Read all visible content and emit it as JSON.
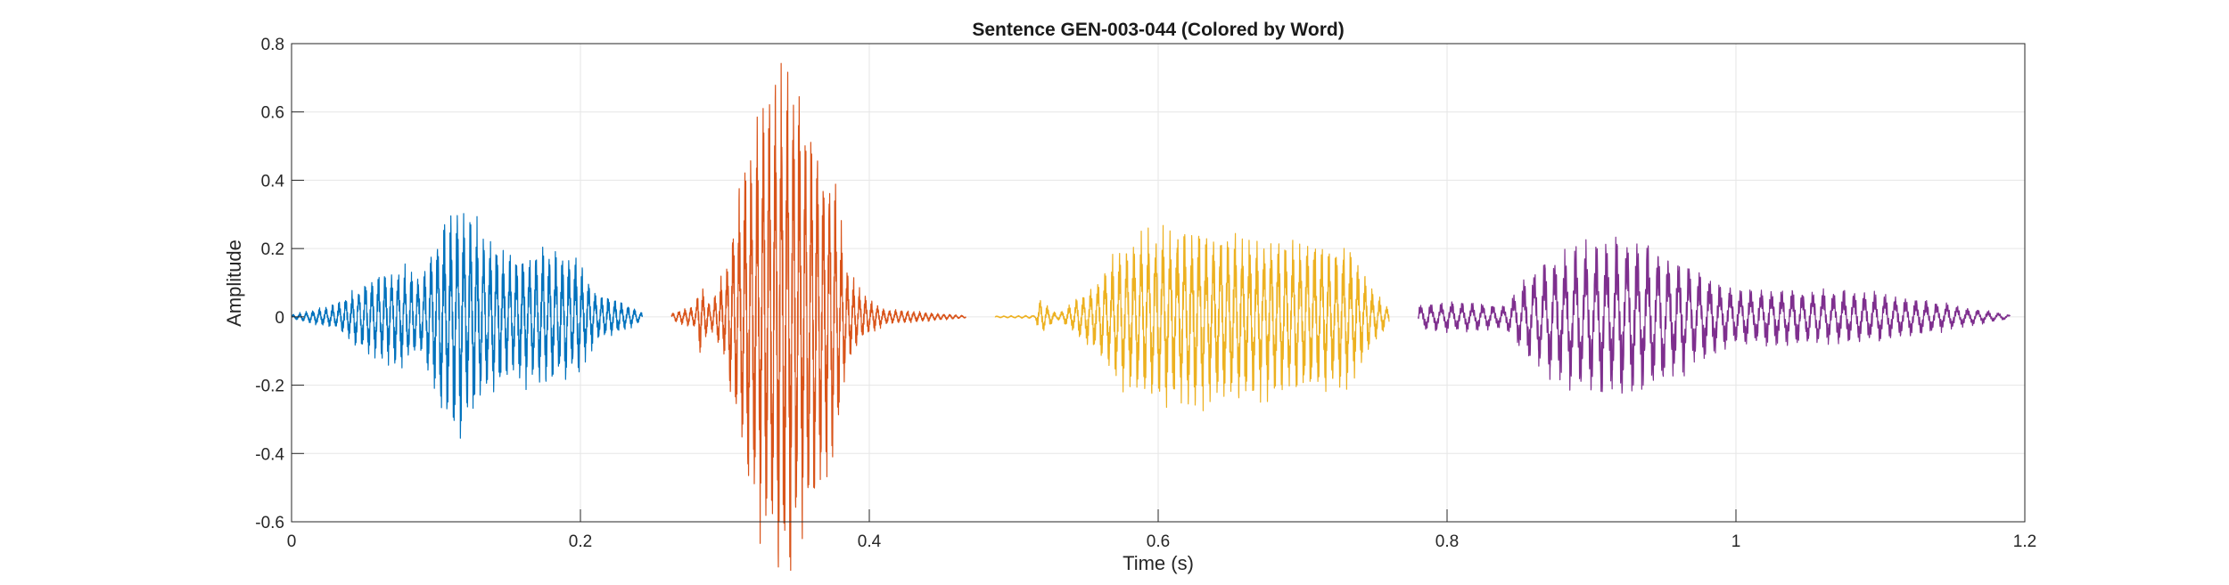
{
  "chart_data": {
    "type": "line",
    "title": "Sentence GEN-003-044 (Colored by Word)",
    "xlabel": "Time (s)",
    "ylabel": "Amplitude",
    "xlim": [
      0,
      1.2
    ],
    "ylim": [
      -0.6,
      0.8
    ],
    "xticks": [
      0,
      0.2,
      0.4,
      0.6,
      0.8,
      1,
      1.2
    ],
    "xtick_labels": [
      "0",
      "0.2",
      "0.4",
      "0.6",
      "0.8",
      "1",
      "1.2"
    ],
    "yticks": [
      -0.6,
      -0.4,
      -0.2,
      0,
      0.2,
      0.4,
      0.6,
      0.8
    ],
    "ytick_labels": [
      "-0.6",
      "-0.4",
      "-0.2",
      "0",
      "0.2",
      "0.4",
      "0.6",
      "0.8"
    ],
    "grid": true,
    "series": [
      {
        "color": "#0072BD",
        "t_start": 0.0,
        "t_end": 0.243,
        "freq_hz": 220,
        "envelope": [
          [
            0.0,
            0.005
          ],
          [
            0.03,
            0.03
          ],
          [
            0.055,
            0.1
          ],
          [
            0.075,
            0.12
          ],
          [
            0.09,
            0.1
          ],
          [
            0.105,
            0.24
          ],
          [
            0.117,
            0.29
          ],
          [
            0.13,
            0.22
          ],
          [
            0.15,
            0.15
          ],
          [
            0.175,
            0.17
          ],
          [
            0.198,
            0.15
          ],
          [
            0.21,
            0.06
          ],
          [
            0.225,
            0.045
          ],
          [
            0.243,
            0.01
          ]
        ]
      },
      {
        "color": "#D95319",
        "t_start": 0.263,
        "t_end": 0.467,
        "freq_hz": 240,
        "envelope": [
          [
            0.263,
            0.01
          ],
          [
            0.28,
            0.03
          ],
          [
            0.282,
            0.1
          ],
          [
            0.29,
            0.03
          ],
          [
            0.3,
            0.12
          ],
          [
            0.315,
            0.4
          ],
          [
            0.33,
            0.6
          ],
          [
            0.345,
            0.65
          ],
          [
            0.36,
            0.5
          ],
          [
            0.375,
            0.35
          ],
          [
            0.385,
            0.12
          ],
          [
            0.395,
            0.06
          ],
          [
            0.41,
            0.02
          ],
          [
            0.467,
            0.003
          ]
        ]
      },
      {
        "color": "#EDB120",
        "t_start": 0.487,
        "t_end": 0.76,
        "freq_hz": 200,
        "envelope": [
          [
            0.487,
            0.002
          ],
          [
            0.515,
            0.004
          ],
          [
            0.518,
            0.05
          ],
          [
            0.53,
            0.006
          ],
          [
            0.555,
            0.08
          ],
          [
            0.575,
            0.17
          ],
          [
            0.6,
            0.21
          ],
          [
            0.625,
            0.22
          ],
          [
            0.66,
            0.2
          ],
          [
            0.7,
            0.19
          ],
          [
            0.73,
            0.18
          ],
          [
            0.75,
            0.06
          ],
          [
            0.76,
            0.02
          ]
        ]
      },
      {
        "color": "#7E2F8E",
        "t_start": 0.78,
        "t_end": 1.19,
        "freq_hz": 140,
        "envelope": [
          [
            0.78,
            0.03
          ],
          [
            0.8,
            0.04
          ],
          [
            0.84,
            0.03
          ],
          [
            0.86,
            0.12
          ],
          [
            0.89,
            0.18
          ],
          [
            0.92,
            0.2
          ],
          [
            0.95,
            0.17
          ],
          [
            0.98,
            0.1
          ],
          [
            1.0,
            0.07
          ],
          [
            1.05,
            0.07
          ],
          [
            1.1,
            0.06
          ],
          [
            1.15,
            0.03
          ],
          [
            1.19,
            0.005
          ]
        ]
      }
    ]
  }
}
